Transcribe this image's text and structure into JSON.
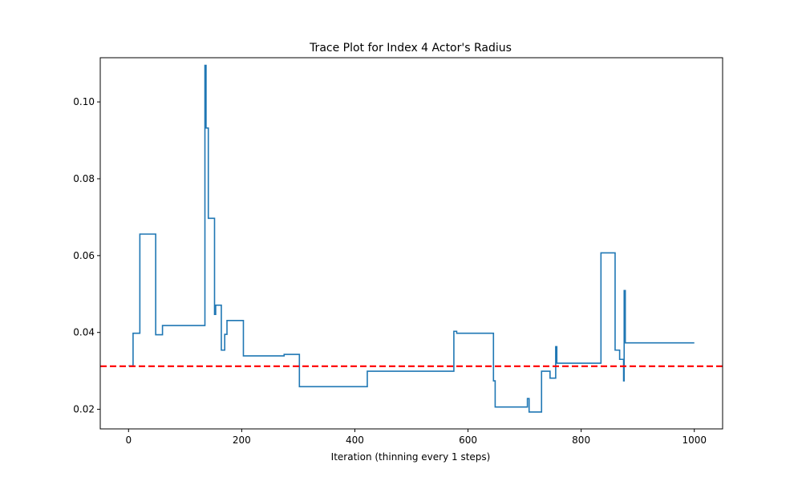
{
  "chart_data": {
    "type": "line",
    "title": "Trace Plot for Index 4 Actor's Radius",
    "xlabel": "Iteration (thinning every 1 steps)",
    "ylabel": "",
    "xlim": [
      -50,
      1050
    ],
    "ylim": [
      0.0149,
      0.1115
    ],
    "xticks": [
      0,
      200,
      400,
      600,
      800,
      1000
    ],
    "yticks": [
      0.02,
      0.04,
      0.06,
      0.08,
      0.1
    ],
    "xtick_labels": [
      "0",
      "200",
      "400",
      "600",
      "800",
      "1000"
    ],
    "ytick_labels": [
      "0.02",
      "0.04",
      "0.06",
      "0.08",
      "0.10"
    ],
    "grid": false,
    "series": [
      {
        "color": "#1f77b4",
        "step": true,
        "x": [
          0,
          8,
          20,
          48,
          60,
          135,
          137,
          141,
          152,
          154,
          164,
          170,
          174,
          203,
          275,
          280,
          300,
          302,
          420,
          422,
          575,
          580,
          645,
          648,
          705,
          708,
          715,
          730,
          745,
          755,
          757,
          835,
          860,
          868,
          875,
          876,
          877,
          878,
          880,
          1000
        ],
        "y": [
          0.0313,
          0.0398,
          0.0656,
          0.0394,
          0.0418,
          0.1095,
          0.0932,
          0.0697,
          0.0447,
          0.0471,
          0.0354,
          0.0395,
          0.0431,
          0.0339,
          0.0343,
          0.0343,
          0.0343,
          0.0259,
          0.0259,
          0.0299,
          0.0403,
          0.0398,
          0.0274,
          0.0206,
          0.0228,
          0.0193,
          0.0193,
          0.0299,
          0.0281,
          0.0363,
          0.032,
          0.0607,
          0.0354,
          0.033,
          0.0274,
          0.0509,
          0.0509,
          0.0373,
          0.0373,
          0.0373
        ]
      }
    ],
    "reference_line": {
      "y": 0.0312,
      "color": "#ff0000",
      "style": "dashed"
    }
  }
}
